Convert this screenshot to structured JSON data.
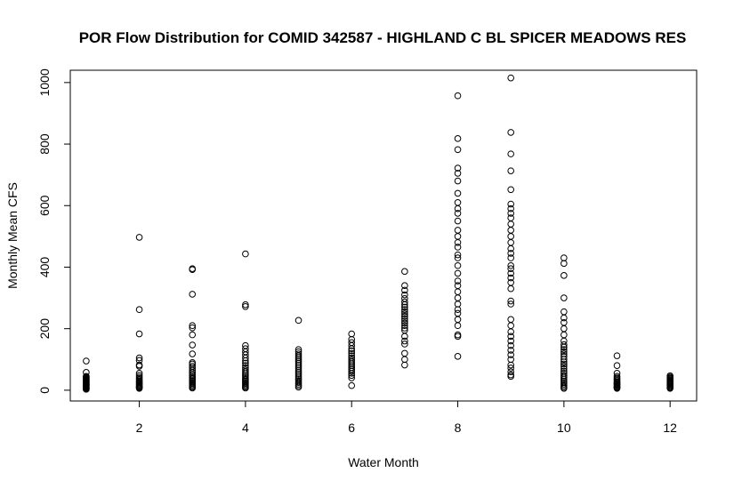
{
  "chart_data": {
    "type": "scatter",
    "title": "POR Flow Distribution for COMID 342587 - HIGHLAND C BL SPICER MEADOWS RES",
    "xlabel": "Water Month",
    "ylabel": "Monthly Mean CFS",
    "xlim": [
      0.7,
      12.5
    ],
    "ylim": [
      -35,
      1040
    ],
    "xticks": [
      2,
      4,
      6,
      8,
      10,
      12
    ],
    "yticks": [
      0,
      200,
      400,
      600,
      800,
      1000
    ],
    "grid": false,
    "legend": "none",
    "point_color": "#000000",
    "series": [
      {
        "points": [
          {
            "x": 1,
            "values": [
              95,
              58,
              45,
              42,
              40,
              38,
              36,
              34,
              32,
              30,
              28,
              26,
              24,
              22,
              20,
              18,
              16,
              14,
              12,
              10,
              8,
              6,
              4,
              3
            ]
          },
          {
            "x": 2,
            "values": [
              497,
              262,
              183,
              105,
              97,
              82,
              78,
              55,
              48,
              42,
              38,
              34,
              30,
              27,
              24,
              21,
              18,
              15,
              12,
              10,
              8,
              6
            ]
          },
          {
            "x": 3,
            "values": [
              395,
              392,
              312,
              210,
              203,
              180,
              147,
              118,
              90,
              85,
              78,
              72,
              65,
              58,
              52,
              47,
              42,
              38,
              34,
              30,
              26,
              22,
              18,
              14,
              10,
              7
            ]
          },
          {
            "x": 4,
            "values": [
              443,
              278,
              272,
              145,
              135,
              125,
              115,
              105,
              96,
              88,
              80,
              73,
              66,
              60,
              54,
              48,
              43,
              38,
              34,
              30,
              26,
              22,
              18,
              14,
              10,
              7
            ]
          },
          {
            "x": 5,
            "values": [
              227,
              132,
              125,
              118,
              112,
              106,
              100,
              94,
              88,
              82,
              76,
              70,
              64,
              58,
              52,
              46,
              40,
              35,
              30,
              25,
              20,
              15,
              10
            ]
          },
          {
            "x": 6,
            "values": [
              183,
              165,
              155,
              145,
              135,
              128,
              120,
              112,
              105,
              98,
              92,
              86,
              80,
              74,
              68,
              62,
              55,
              48,
              40,
              15
            ]
          },
          {
            "x": 7,
            "values": [
              386,
              340,
              325,
              310,
              298,
              287,
              278,
              270,
              262,
              255,
              248,
              240,
              232,
              225,
              218,
              210,
              202,
              195,
              175,
              160,
              150,
              120,
              100,
              82
            ]
          },
          {
            "x": 8,
            "values": [
              957,
              818,
              782,
              722,
              705,
              680,
              640,
              610,
              590,
              575,
              550,
              520,
              500,
              480,
              465,
              440,
              430,
              405,
              380,
              355,
              340,
              320,
              300,
              280,
              262,
              250,
              230,
              210,
              180,
              175,
              110
            ]
          },
          {
            "x": 9,
            "values": [
              1015,
              838,
              768,
              713,
              652,
              605,
              590,
              575,
              560,
              540,
              520,
              500,
              480,
              460,
              445,
              430,
              405,
              395,
              380,
              365,
              350,
              330,
              290,
              280,
              230,
              210,
              190,
              175,
              160,
              145,
              130,
              115,
              100,
              82,
              72,
              60,
              50,
              45
            ]
          },
          {
            "x": 10,
            "values": [
              430,
              412,
              373,
              300,
              255,
              235,
              220,
              200,
              180,
              160,
              148,
              140,
              132,
              125,
              118,
              110,
              100,
              92,
              85,
              78,
              70,
              62,
              55,
              48,
              42,
              36,
              30,
              25,
              20,
              15,
              10,
              6
            ]
          },
          {
            "x": 11,
            "values": [
              112,
              80,
              55,
              45,
              40,
              36,
              32,
              28,
              25,
              22,
              20,
              18,
              15,
              12,
              10,
              8,
              6
            ]
          },
          {
            "x": 12,
            "values": [
              47,
              43,
              40,
              37,
              34,
              31,
              28,
              25,
              22,
              19,
              16,
              13,
              10,
              8,
              6
            ]
          }
        ]
      }
    ]
  }
}
